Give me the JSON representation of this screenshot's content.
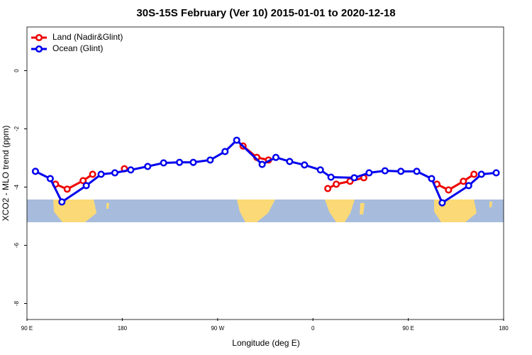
{
  "chart_data": {
    "type": "line",
    "title": "30S-15S February (Ver 10)   2015-01-01 to 2020-12-18",
    "x_label": "Longitude (deg E)",
    "y_label": "XCO2 - MLO trend (ppm)",
    "xlim": [
      90,
      540
    ],
    "xticks": [
      {
        "value": 90,
        "label": "90 E"
      },
      {
        "value": 180,
        "label": "180"
      },
      {
        "value": 270,
        "label": "90 W"
      },
      {
        "value": 360,
        "label": "0"
      },
      {
        "value": 450,
        "label": "90 E"
      },
      {
        "value": 540,
        "label": "180"
      }
    ],
    "ylim": [
      -8.5,
      1.5
    ],
    "yticks": [
      0,
      -2,
      -4,
      -6,
      -8
    ],
    "legend": "top-left",
    "series": [
      {
        "name": "Land (Nadir&Glint)",
        "color": "#ee0000",
        "x": [
          117,
          128,
          143,
          152,
          null,
          182,
          null,
          294,
          307,
          318,
          null,
          374,
          382,
          395,
          408,
          null,
          477,
          488,
          502,
          512
        ],
        "values": [
          -3.9,
          -4.07,
          -3.78,
          -3.56,
          null,
          -3.37,
          null,
          -2.59,
          -2.98,
          -3.07,
          null,
          -4.05,
          -3.9,
          -3.8,
          -3.68,
          null,
          -3.9,
          -4.1,
          -3.8,
          -3.56
        ]
      },
      {
        "name": "Ocean (Glint)",
        "color": "#0000ee",
        "x": [
          98,
          112,
          123,
          146,
          160,
          173,
          188,
          204,
          219,
          234,
          247,
          263,
          277,
          288,
          312,
          325,
          338,
          352,
          367,
          377,
          399,
          413,
          428,
          443,
          458,
          472,
          482,
          507,
          519,
          533
        ],
        "values": [
          -3.46,
          -3.71,
          -4.51,
          -3.95,
          -3.56,
          -3.51,
          -3.41,
          -3.29,
          -3.17,
          -3.15,
          -3.15,
          -3.07,
          -2.78,
          -2.39,
          -3.22,
          -2.98,
          -3.12,
          -3.24,
          -3.41,
          -3.66,
          -3.68,
          -3.51,
          -3.44,
          -3.46,
          -3.46,
          -3.71,
          -4.54,
          -3.95,
          -3.56,
          -3.51
        ]
      }
    ]
  }
}
